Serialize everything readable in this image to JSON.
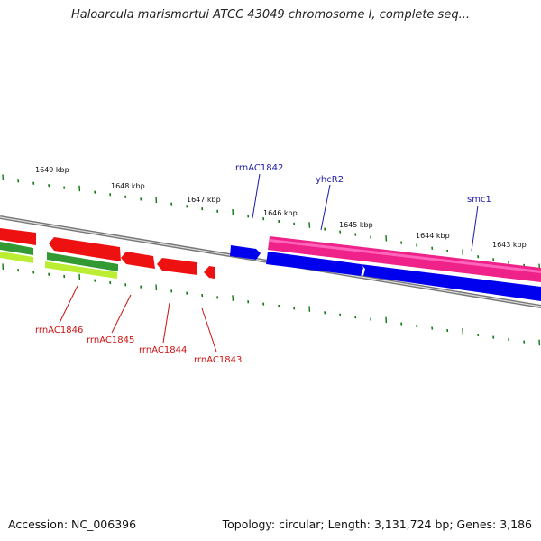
{
  "title": "Haloarcula marismortui ATCC 43049 chromosome I, complete seq...",
  "footer": {
    "accession": "Accession: NC_006396",
    "topology": "Topology: circular; Length: 3,131,724 bp; Genes: 3,186"
  },
  "ruler": {
    "kbp_labels": [
      "1649 kbp",
      "1648 kbp",
      "1647 kbp",
      "1646 kbp",
      "1645 kbp",
      "1644 kbp",
      "1643 kbp"
    ]
  },
  "genes": {
    "forward_labels": [
      "rrnAC1842",
      "yhcR2",
      "smc1"
    ],
    "reverse_labels": [
      "rrnAC1846",
      "rrnAC1845",
      "rrnAC1844",
      "rrnAC1843"
    ]
  },
  "colors": {
    "rrna_red": "#ee1111",
    "cds_blue": "#0000ee",
    "highlight_magenta": "#ee2288",
    "backbone_gray": "#777777",
    "tick_green": "#117711",
    "track_green": "#339933",
    "track_lime": "#aadd33"
  }
}
